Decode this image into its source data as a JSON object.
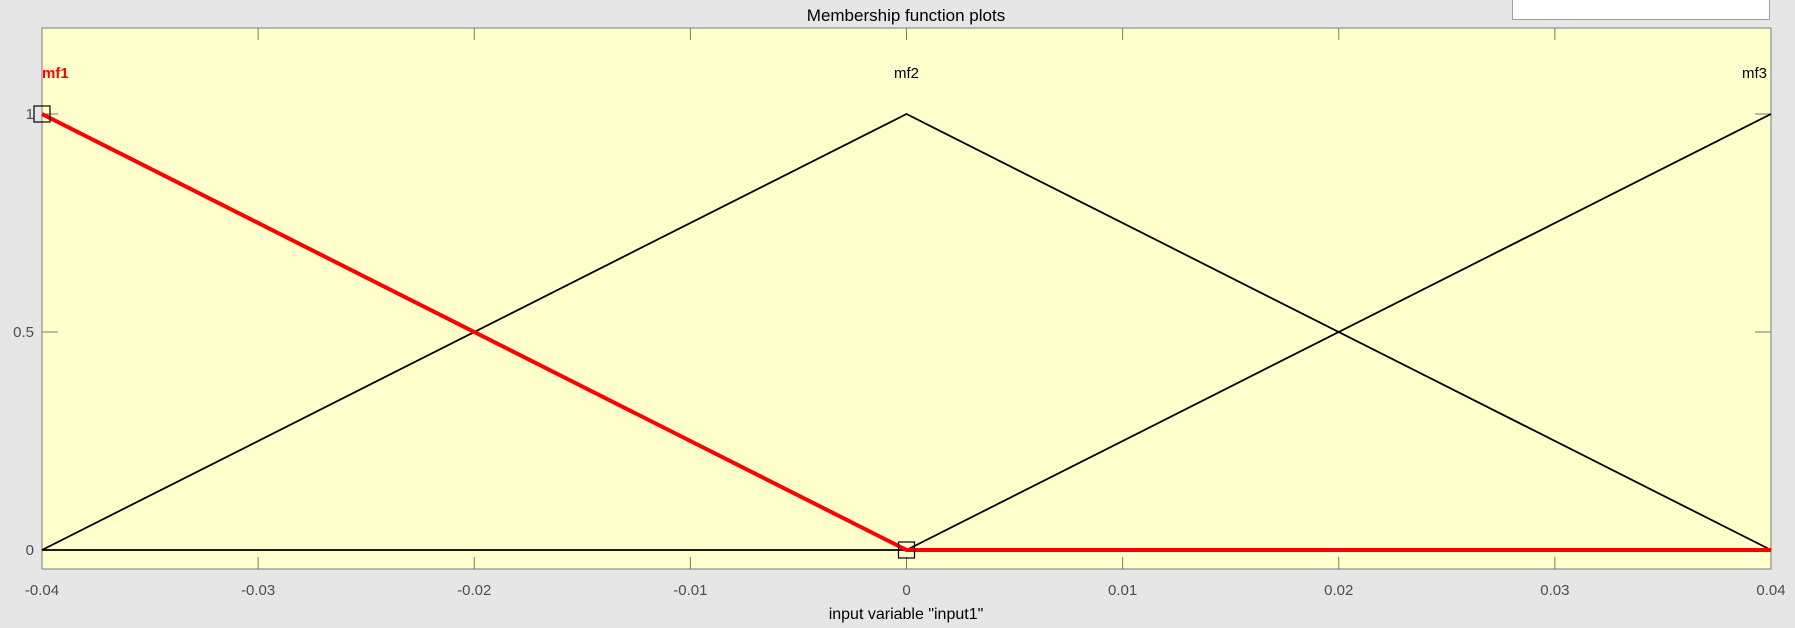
{
  "chart_data": {
    "type": "line",
    "title": "Membership function plots",
    "xlabel": "input variable \"input1\"",
    "ylabel": "",
    "xlim": [
      -0.04,
      0.04
    ],
    "ylim": [
      0,
      1
    ],
    "x_ticks": [
      -0.04,
      -0.03,
      -0.02,
      -0.01,
      0,
      0.01,
      0.02,
      0.03,
      0.04
    ],
    "x_tick_labels": [
      "-0.04",
      "-0.03",
      "-0.02",
      "-0.01",
      "0",
      "0.01",
      "0.02",
      "0.03",
      "0.04"
    ],
    "y_ticks": [
      0,
      0.5,
      1
    ],
    "y_tick_labels": [
      "0",
      "0.5",
      "1"
    ],
    "grid": false,
    "background_color": "#ffffcc",
    "series": [
      {
        "name": "mf1",
        "selected": true,
        "color": "#ff0000",
        "x": [
          -0.04,
          0,
          0.04
        ],
        "y": [
          1,
          0,
          0
        ],
        "label_x": -0.04,
        "label_align": "left",
        "handles": [
          [
            -0.04,
            1
          ],
          [
            0,
            0
          ]
        ]
      },
      {
        "name": "mf2",
        "selected": false,
        "color": "#000000",
        "x": [
          -0.04,
          0,
          0.04
        ],
        "y": [
          0,
          1,
          0
        ],
        "label_x": 0,
        "label_align": "center",
        "handles": []
      },
      {
        "name": "mf3",
        "selected": false,
        "color": "#000000",
        "x": [
          -0.04,
          0,
          0.04
        ],
        "y": [
          0,
          0,
          1
        ],
        "label_x": 0.04,
        "label_align": "right",
        "handles": []
      }
    ]
  }
}
